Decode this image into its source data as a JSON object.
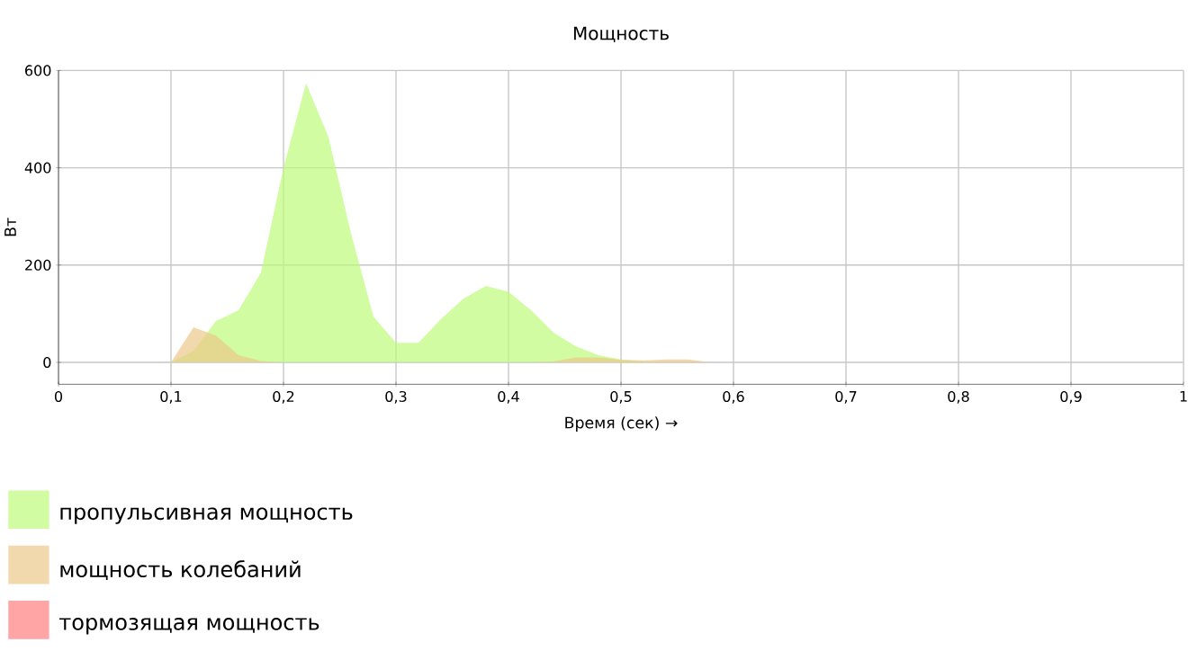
{
  "chart_data": {
    "type": "area",
    "title": "Мощность",
    "xlabel": "Время (сек) →",
    "ylabel": "Вт",
    "x": [
      0.1,
      0.12,
      0.14,
      0.16,
      0.18,
      0.2,
      0.22,
      0.24,
      0.26,
      0.28,
      0.3,
      0.32,
      0.34,
      0.36,
      0.38,
      0.4,
      0.42,
      0.44,
      0.46,
      0.48,
      0.5,
      0.52,
      0.54,
      0.56,
      0.58
    ],
    "series": [
      {
        "name": "пропульсивная мощность",
        "color": "#bdfb7a",
        "values": [
          0,
          24,
          85,
          107,
          185,
          400,
          574,
          463,
          265,
          94,
          40,
          40,
          89,
          131,
          157,
          145,
          107,
          61,
          33,
          15,
          6,
          2,
          0,
          0,
          0
        ]
      },
      {
        "name": "мощность колебаний",
        "color": "#ecc98a",
        "values": [
          0,
          72,
          55,
          15,
          3,
          0,
          0,
          0,
          0,
          0,
          0,
          0,
          0,
          0,
          0,
          0,
          0,
          2,
          10,
          10,
          5,
          4,
          6,
          6,
          0
        ]
      },
      {
        "name": "тормозящая мощность",
        "color": "#ff7f7f",
        "values": [
          null,
          null,
          null,
          null,
          null,
          null,
          null,
          null,
          null,
          null,
          null,
          null,
          null,
          null,
          null,
          null,
          null,
          null,
          null,
          null,
          null,
          null,
          null,
          null,
          null
        ]
      }
    ],
    "xlim": [
      0,
      1
    ],
    "ylim": [
      -45,
      600
    ],
    "xticks": [
      0,
      {
        "value": 0.1,
        "label": "0,1"
      },
      {
        "value": 0.2,
        "label": "0,2"
      },
      {
        "value": 0.3,
        "label": "0,3"
      },
      {
        "value": 0.4,
        "label": "0,4"
      },
      {
        "value": 0.5,
        "label": "0,5"
      },
      {
        "value": 0.6,
        "label": "0,6"
      },
      {
        "value": 0.7,
        "label": "0,7"
      },
      {
        "value": 0.8,
        "label": "0,8"
      },
      {
        "value": 0.9,
        "label": "0,9"
      },
      1
    ],
    "yticks": [
      0,
      200,
      400,
      600
    ],
    "grid": true,
    "legend": "bottom left"
  }
}
